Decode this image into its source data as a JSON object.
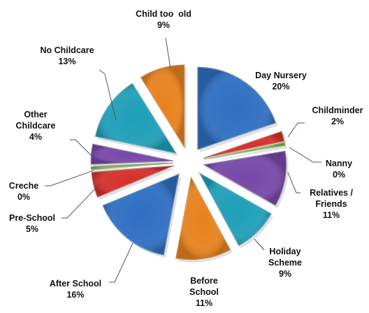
{
  "chart_data": {
    "type": "pie",
    "exploded": true,
    "style": "3d-bevel",
    "slices": [
      {
        "label": "Day Nursery",
        "value_label": "20%",
        "value": 20,
        "color": "#2f6fc2"
      },
      {
        "label": "Childminder",
        "value_label": "2%",
        "value": 2,
        "color": "#d5302a"
      },
      {
        "label": "Nanny",
        "value_label": "0%",
        "value": 0,
        "color": "#7fb24a"
      },
      {
        "label": "Relatives / Friends",
        "value_label": "11%",
        "value": 11,
        "color": "#7748a8"
      },
      {
        "label": "Holiday Scheme",
        "value_label": "9%",
        "value": 9,
        "color": "#1f9fb8"
      },
      {
        "label": "Before School",
        "value_label": "11%",
        "value": 11,
        "color": "#e8821e"
      },
      {
        "label": "After School",
        "value_label": "16%",
        "value": 16,
        "color": "#2f6fc2"
      },
      {
        "label": "Pre-School",
        "value_label": "5%",
        "value": 5,
        "color": "#d5302a"
      },
      {
        "label": "Creche",
        "value_label": "0%",
        "value": 0,
        "color": "#7fb24a"
      },
      {
        "label": "Other Childcare",
        "value_label": "4%",
        "value": 4,
        "color": "#7748a8"
      },
      {
        "label": "No Childcare",
        "value_label": "13%",
        "value": 13,
        "color": "#1f9fb8"
      },
      {
        "label": "Child too old",
        "value_label": "9%",
        "value": 9,
        "color": "#e8821e"
      }
    ]
  },
  "labels": {
    "day_nursery": {
      "l1": "Day Nursery",
      "l2": "20%"
    },
    "childminder": {
      "l1": "Childminder",
      "l2": "2%"
    },
    "nanny": {
      "l1": "Nanny",
      "l2": "0%"
    },
    "relatives": {
      "l1": "Relatives /",
      "l2": "Friends",
      "l3": "11%"
    },
    "holiday": {
      "l1": "Holiday",
      "l2": "Scheme",
      "l3": "9%"
    },
    "before_school": {
      "l1": "Before",
      "l2": "School",
      "l3": "11%"
    },
    "after_school": {
      "l1": "After School",
      "l2": "16%"
    },
    "pre_school": {
      "l1": "Pre-School",
      "l2": "5%"
    },
    "creche": {
      "l1": "Creche",
      "l2": "0%"
    },
    "other": {
      "l1": "Other",
      "l2": "Childcare",
      "l3": "4%"
    },
    "no_childcare": {
      "l1": "No Childcare",
      "l2": "13%"
    },
    "too_old": {
      "l1": "Child too  old",
      "l2": "9%"
    }
  }
}
